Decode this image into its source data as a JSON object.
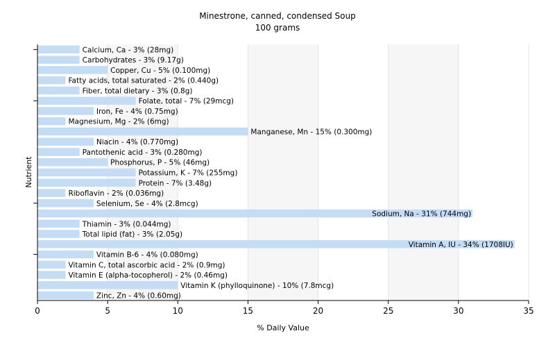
{
  "chart_data": {
    "type": "bar",
    "orientation": "horizontal",
    "title": "Minestrone, canned, condensed Soup",
    "subtitle": "100 grams",
    "xlabel": "% Daily Value",
    "ylabel": "Nutrient",
    "xlim": [
      0,
      35
    ],
    "xticks": [
      0,
      5,
      10,
      15,
      20,
      25,
      30,
      35
    ],
    "grid": "vertical",
    "bar_color": "#c5dcf5",
    "categories": [
      "Calcium, Ca",
      "Carbohydrates",
      "Copper, Cu",
      "Fatty acids, total saturated",
      "Fiber, total dietary",
      "Folate, total",
      "Iron, Fe",
      "Magnesium, Mg",
      "Manganese, Mn",
      "Niacin",
      "Pantothenic acid",
      "Phosphorus, P",
      "Potassium, K",
      "Protein",
      "Riboflavin",
      "Selenium, Se",
      "Sodium, Na",
      "Thiamin",
      "Total lipid (fat)",
      "Vitamin A, IU",
      "Vitamin B-6",
      "Vitamin C, total ascorbic acid",
      "Vitamin E (alpha-tocopherol)",
      "Vitamin K (phylloquinone)",
      "Zinc, Zn"
    ],
    "values": [
      3,
      3,
      5,
      2,
      3,
      7,
      4,
      2,
      15,
      4,
      3,
      5,
      7,
      7,
      2,
      4,
      31,
      3,
      3,
      34,
      4,
      2,
      2,
      10,
      4
    ],
    "labels": [
      "Calcium, Ca - 3% (28mg)",
      "Carbohydrates - 3% (9.17g)",
      "Copper, Cu - 5% (0.100mg)",
      "Fatty acids, total saturated - 2% (0.440g)",
      "Fiber, total dietary - 3% (0.8g)",
      "Folate, total - 7% (29mcg)",
      "Iron, Fe - 4% (0.75mg)",
      "Magnesium, Mg - 2% (6mg)",
      "Manganese, Mn - 15% (0.300mg)",
      "Niacin - 4% (0.770mg)",
      "Pantothenic acid - 3% (0.280mg)",
      "Phosphorus, P - 5% (46mg)",
      "Potassium, K - 7% (255mg)",
      "Protein - 7% (3.48g)",
      "Riboflavin - 2% (0.036mg)",
      "Selenium, Se - 4% (2.8mcg)",
      "Sodium, Na - 31% (744mg)",
      "Thiamin - 3% (0.044mg)",
      "Total lipid (fat) - 3% (2.05g)",
      "Vitamin A, IU - 34% (1708IU)",
      "Vitamin B-6 - 4% (0.080mg)",
      "Vitamin C, total ascorbic acid - 2% (0.9mg)",
      "Vitamin E (alpha-tocopherol) - 2% (0.46mg)",
      "Vitamin K (phylloquinone) - 10% (7.8mcg)",
      "Zinc, Zn - 4% (0.60mg)"
    ]
  }
}
